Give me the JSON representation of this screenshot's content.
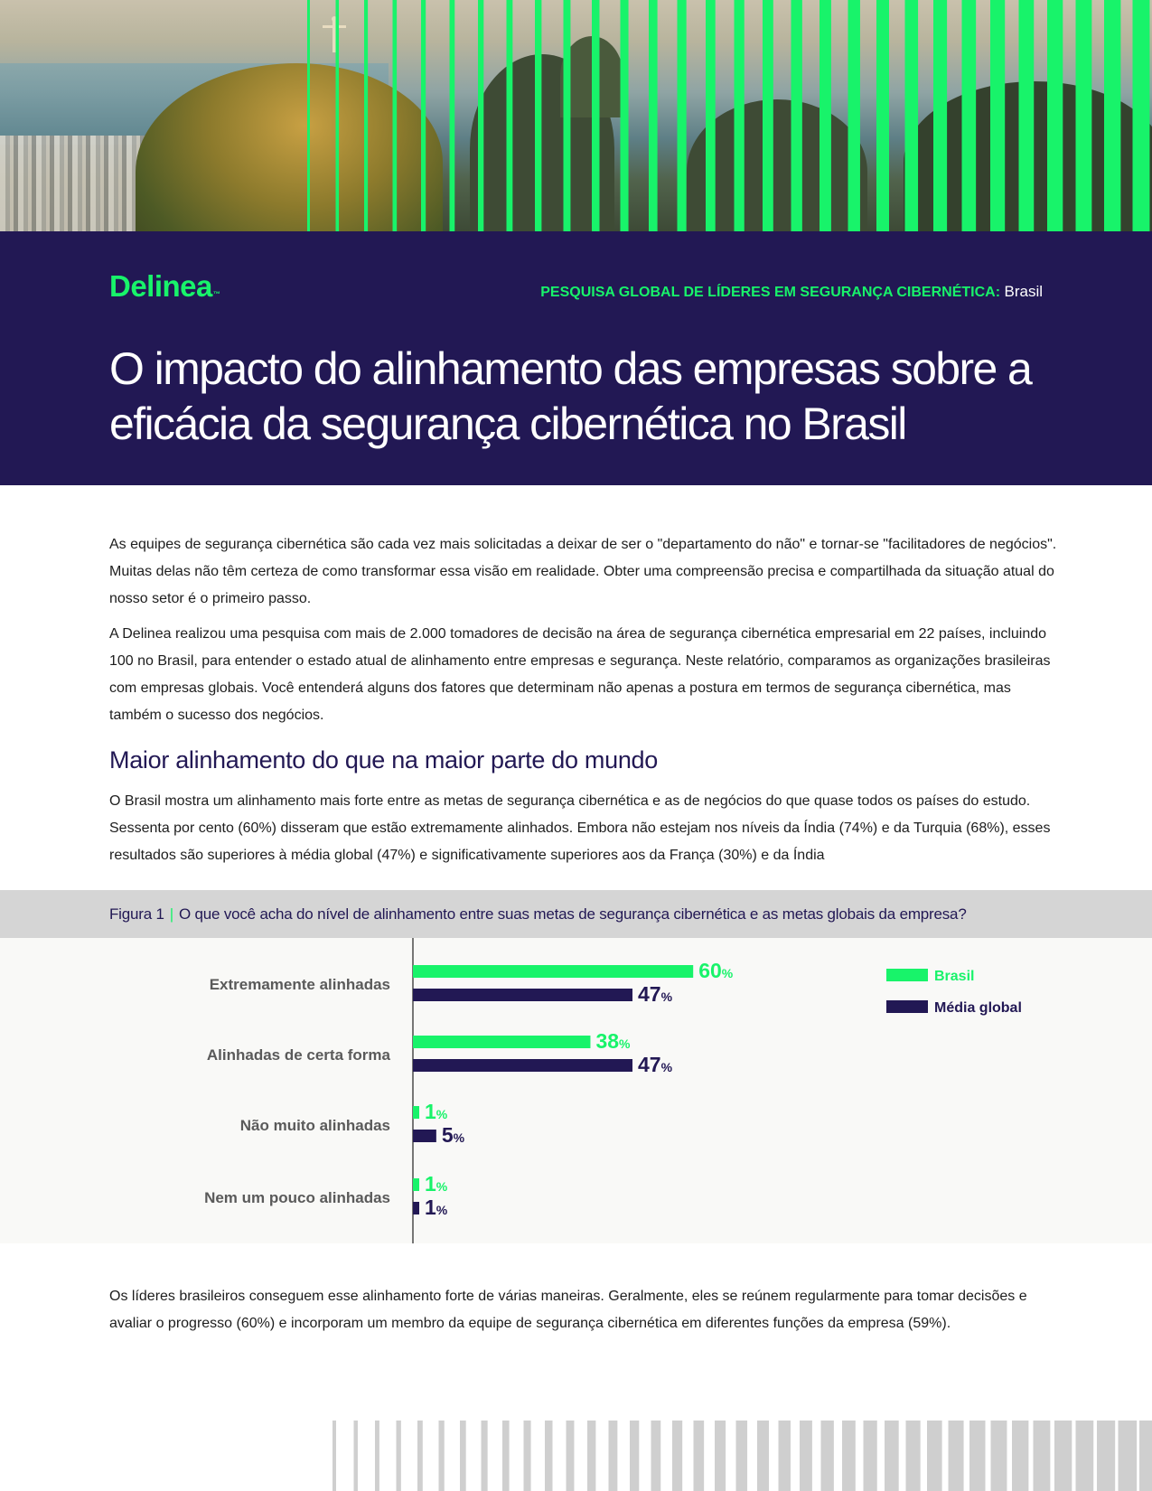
{
  "brand": {
    "logo_text": "Delinea",
    "logo_mark": "™",
    "accent_color": "#18f36a",
    "navy_color": "#221854"
  },
  "header": {
    "report_label": "PESQUISA GLOBAL DE LÍDERES EM SEGURANÇA CIBERNÉTICA:",
    "report_country": "Brasil",
    "title": "O impacto do alinhamento das empresas sobre a eficácia da segurança cibernética no Brasil"
  },
  "intro": {
    "paragraph_1": "As equipes de segurança cibernética são cada vez mais solicitadas a deixar de ser o \"departamento do não\" e tornar-se \"facilitadores de negócios\". Muitas delas não têm certeza de como transformar essa visão em realidade. Obter uma compreensão precisa e compartilhada da situação atual do nosso setor é o primeiro passo.",
    "paragraph_2": "A Delinea realizou uma pesquisa com mais de 2.000 tomadores de decisão na área de segurança cibernética empresarial em 22 países, incluindo 100 no Brasil, para entender o estado atual de alinhamento entre empresas e segurança. Neste relatório, comparamos as organizações brasileiras com empresas globais. Você entenderá alguns dos fatores que determinam não apenas a postura em termos de segurança cibernética, mas também o sucesso dos negócios."
  },
  "section": {
    "heading": "Maior alinhamento do que na maior parte do mundo",
    "paragraph": "O Brasil mostra um alinhamento mais forte entre as metas de segurança cibernética e as de negócios do que quase todos os países do estudo. Sessenta por cento (60%) disseram que estão extremamente alinhados. Embora não estejam nos níveis da Índia (74%) e da Turquia (68%), esses resultados são superiores à média global (47%) e significativamente superiores aos da França (30%) e da Índia"
  },
  "figure": {
    "label": "Figura 1",
    "separator": "|",
    "question": "O que você acha do nível de alinhamento entre suas metas de segurança cibernética e as metas globais da empresa?"
  },
  "chart_data": {
    "type": "bar",
    "orientation": "horizontal",
    "categories": [
      "Extremamente alinhadas",
      "Alinhadas de certa forma",
      "Não muito alinhadas",
      "Nem um pouco alinhadas"
    ],
    "series": [
      {
        "name": "Brasil",
        "values": [
          60,
          38,
          1,
          1
        ],
        "color": "#18f36a"
      },
      {
        "name": "Média global",
        "values": [
          47,
          47,
          5,
          1
        ],
        "color": "#221854"
      }
    ],
    "unit": "%",
    "legend_position": "top-right",
    "grid": false
  },
  "closing": {
    "paragraph": "Os líderes brasileiros conseguem esse alinhamento forte de várias maneiras. Geralmente, eles se reúnem regularmente para tomar decisões e avaliar o progresso (60%) e incorporam um membro da equipe de segurança cibernética em diferentes funções da empresa (59%)."
  },
  "icons": {
    "hero_image": "rio-de-janeiro-christ-the-redeemer-photo",
    "stripe_pattern": "green-vertical-stripes-decoration",
    "footer_pattern": "gray-vertical-stripes-decoration"
  }
}
